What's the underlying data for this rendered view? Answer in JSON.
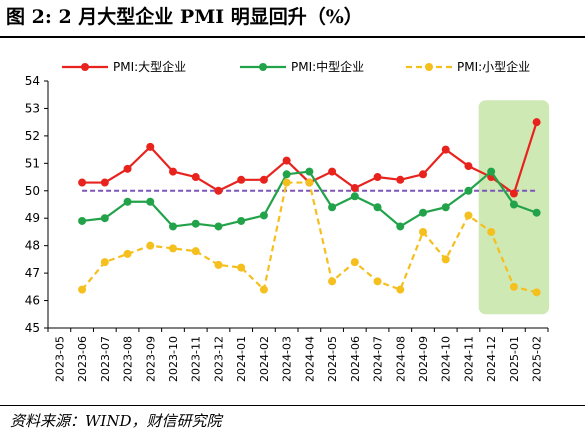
{
  "figure": {
    "title": "图 2:  2 月大型企业 PMI 明显回升（%）",
    "source": "资料来源：WIND，财信研究院"
  },
  "colors": {
    "large": "#e8231e",
    "medium": "#22a34a",
    "small": "#f5bf1d",
    "reference": "#7b56b8",
    "highlight": "#cfe9b5",
    "axis": "#000000"
  },
  "chart_data": {
    "type": "line",
    "categories": [
      "2023-05",
      "2023-06",
      "2023-07",
      "2023-08",
      "2023-09",
      "2023-10",
      "2023-11",
      "2023-12",
      "2024-01",
      "2024-02",
      "2024-03",
      "2024-04",
      "2024-05",
      "2024-06",
      "2024-07",
      "2024-08",
      "2024-09",
      "2024-10",
      "2024-11",
      "2024-12",
      "2025-01",
      "2025-02"
    ],
    "ylim": [
      45,
      54
    ],
    "yticks": [
      45,
      46,
      47,
      48,
      49,
      50,
      51,
      52,
      53,
      54
    ],
    "grid": false,
    "legend_position": "top",
    "reference_line": 50,
    "highlight_range": [
      "2024-12",
      "2025-02"
    ],
    "series": [
      {
        "name": "PMI:大型企业",
        "style": "solid",
        "color_key": "large",
        "values": [
          null,
          50.3,
          50.3,
          50.8,
          51.6,
          50.7,
          50.5,
          50.0,
          50.4,
          50.4,
          51.1,
          50.3,
          50.7,
          50.1,
          50.5,
          50.4,
          50.6,
          51.5,
          50.9,
          50.5,
          49.9,
          52.5
        ]
      },
      {
        "name": "PMI:中型企业",
        "style": "solid",
        "color_key": "medium",
        "values": [
          null,
          48.9,
          49.0,
          49.6,
          49.6,
          48.7,
          48.8,
          48.7,
          48.9,
          49.1,
          50.6,
          50.7,
          49.4,
          49.8,
          49.4,
          48.7,
          49.2,
          49.4,
          50.0,
          50.7,
          49.5,
          49.2
        ]
      },
      {
        "name": "PMI:小型企业",
        "style": "dashed",
        "color_key": "small",
        "values": [
          null,
          46.4,
          47.4,
          47.7,
          48.0,
          47.9,
          47.8,
          47.3,
          47.2,
          46.4,
          50.3,
          50.3,
          46.7,
          47.4,
          46.7,
          46.4,
          48.5,
          47.5,
          49.1,
          48.5,
          46.5,
          46.3
        ]
      }
    ]
  }
}
